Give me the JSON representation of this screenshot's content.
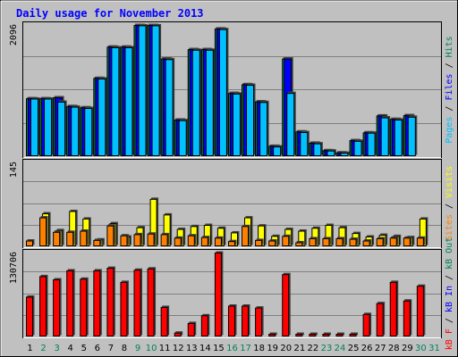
{
  "chart_data": [
    {
      "type": "bar",
      "title": "Daily usage for November 2013",
      "categories": [
        "1",
        "2",
        "3",
        "4",
        "5",
        "6",
        "7",
        "8",
        "9",
        "10",
        "11",
        "12",
        "13",
        "14",
        "15",
        "16",
        "17",
        "18",
        "19",
        "20",
        "21",
        "22",
        "23",
        "24",
        "25",
        "26",
        "27",
        "28",
        "29",
        "30",
        "31"
      ],
      "ymax_label": "2096",
      "ylim": [
        0,
        2096
      ],
      "series": [
        {
          "name": "Hits",
          "color": "#00805c",
          "values": [
            925,
            925,
            940,
            800,
            780,
            1250,
            1750,
            1750,
            2096,
            2096,
            1560,
            585,
            1710,
            1710,
            2040,
            1010,
            1150,
            875,
            165,
            1560,
            395,
            215,
            95,
            60,
            255,
            380,
            650,
            595,
            655,
            0,
            0
          ]
        },
        {
          "name": "Files",
          "color": "#0000ff",
          "values": [
            925,
            925,
            940,
            800,
            780,
            1250,
            1750,
            1750,
            2096,
            2096,
            1560,
            585,
            1710,
            1710,
            2040,
            1010,
            1150,
            875,
            165,
            1560,
            395,
            215,
            95,
            60,
            255,
            380,
            650,
            595,
            655,
            0,
            0
          ]
        },
        {
          "name": "Pages",
          "color": "#00c0ff",
          "values": [
            920,
            920,
            870,
            790,
            770,
            1240,
            1740,
            1740,
            2090,
            2090,
            1550,
            575,
            1700,
            1700,
            2030,
            1000,
            1140,
            865,
            155,
            1010,
            385,
            205,
            90,
            55,
            245,
            375,
            620,
            585,
            630,
            0,
            0
          ]
        }
      ]
    },
    {
      "type": "bar",
      "ymax_label": "145",
      "ylim": [
        0,
        145
      ],
      "series": [
        {
          "name": "Visits",
          "color": "#ffff00",
          "values": [
            0,
            57,
            28,
            61,
            48,
            12,
            40,
            17,
            33,
            82,
            55,
            30,
            35,
            37,
            32,
            24,
            50,
            36,
            18,
            30,
            27,
            32,
            37,
            33,
            23,
            17,
            20,
            18,
            16,
            48,
            0
          ]
        },
        {
          "name": "Sites",
          "color": "#ff8000",
          "values": [
            10,
            50,
            25,
            25,
            27,
            11,
            36,
            19,
            21,
            22,
            21,
            15,
            19,
            16,
            15,
            9,
            35,
            11,
            10,
            18,
            7,
            14,
            14,
            14,
            13,
            10,
            14,
            15,
            15,
            15,
            0
          ]
        }
      ]
    },
    {
      "type": "bar",
      "ymax_label": "130706",
      "ylim": [
        0,
        130706
      ],
      "series": [
        {
          "name": "kB F",
          "color": "#ff0000",
          "values": [
            0,
            0,
            0,
            0,
            0,
            0,
            0,
            0,
            0,
            0,
            0,
            0,
            0,
            0,
            0,
            0,
            0,
            0,
            0,
            0,
            0,
            0,
            0,
            0,
            0,
            0,
            0,
            0,
            0,
            0,
            0
          ]
        },
        {
          "name": "kB In",
          "color": "#0000ff",
          "values": [
            0,
            0,
            0,
            0,
            0,
            0,
            0,
            0,
            0,
            0,
            0,
            0,
            0,
            0,
            0,
            0,
            0,
            0,
            0,
            0,
            0,
            0,
            0,
            0,
            0,
            0,
            0,
            0,
            0,
            0,
            0
          ]
        },
        {
          "name": "kB Out",
          "color": "#ff0000",
          "values": [
            62000,
            94000,
            89000,
            103000,
            90000,
            103000,
            107000,
            85000,
            104000,
            106000,
            46000,
            6000,
            21000,
            33000,
            130706,
            48000,
            48000,
            45000,
            3000,
            97000,
            3000,
            4000,
            4000,
            2000,
            1000,
            35000,
            52000,
            85000,
            56000,
            79000,
            0
          ]
        }
      ]
    }
  ],
  "legend_top": [
    {
      "text": "Pages",
      "color": "#00c0ff"
    },
    {
      "text": " / ",
      "color": "#000000"
    },
    {
      "text": "Files",
      "color": "#0000ff"
    },
    {
      "text": " / ",
      "color": "#000000"
    },
    {
      "text": "Hits",
      "color": "#00805c"
    }
  ],
  "legend_middle": [
    {
      "text": "Sites",
      "color": "#ff8000"
    },
    {
      "text": " / ",
      "color": "#000000"
    },
    {
      "text": "Visits",
      "color": "#ffff00"
    }
  ],
  "legend_bottom": [
    {
      "text": "kB F",
      "color": "#ff0000"
    },
    {
      "text": " / ",
      "color": "#000000"
    },
    {
      "text": "kB In",
      "color": "#0000ff"
    },
    {
      "text": " / ",
      "color": "#000000"
    },
    {
      "text": "kB Out",
      "color": "#00805c"
    }
  ],
  "weekend_days": [
    "2",
    "3",
    "9",
    "10",
    "16",
    "17",
    "23",
    "24",
    "30",
    "31"
  ],
  "colors": {
    "weekday_label": "#000000",
    "weekend_label": "#00805c",
    "title": "#0000ff",
    "panel_bg": "#c0c0c0",
    "gridline": "#808080"
  }
}
